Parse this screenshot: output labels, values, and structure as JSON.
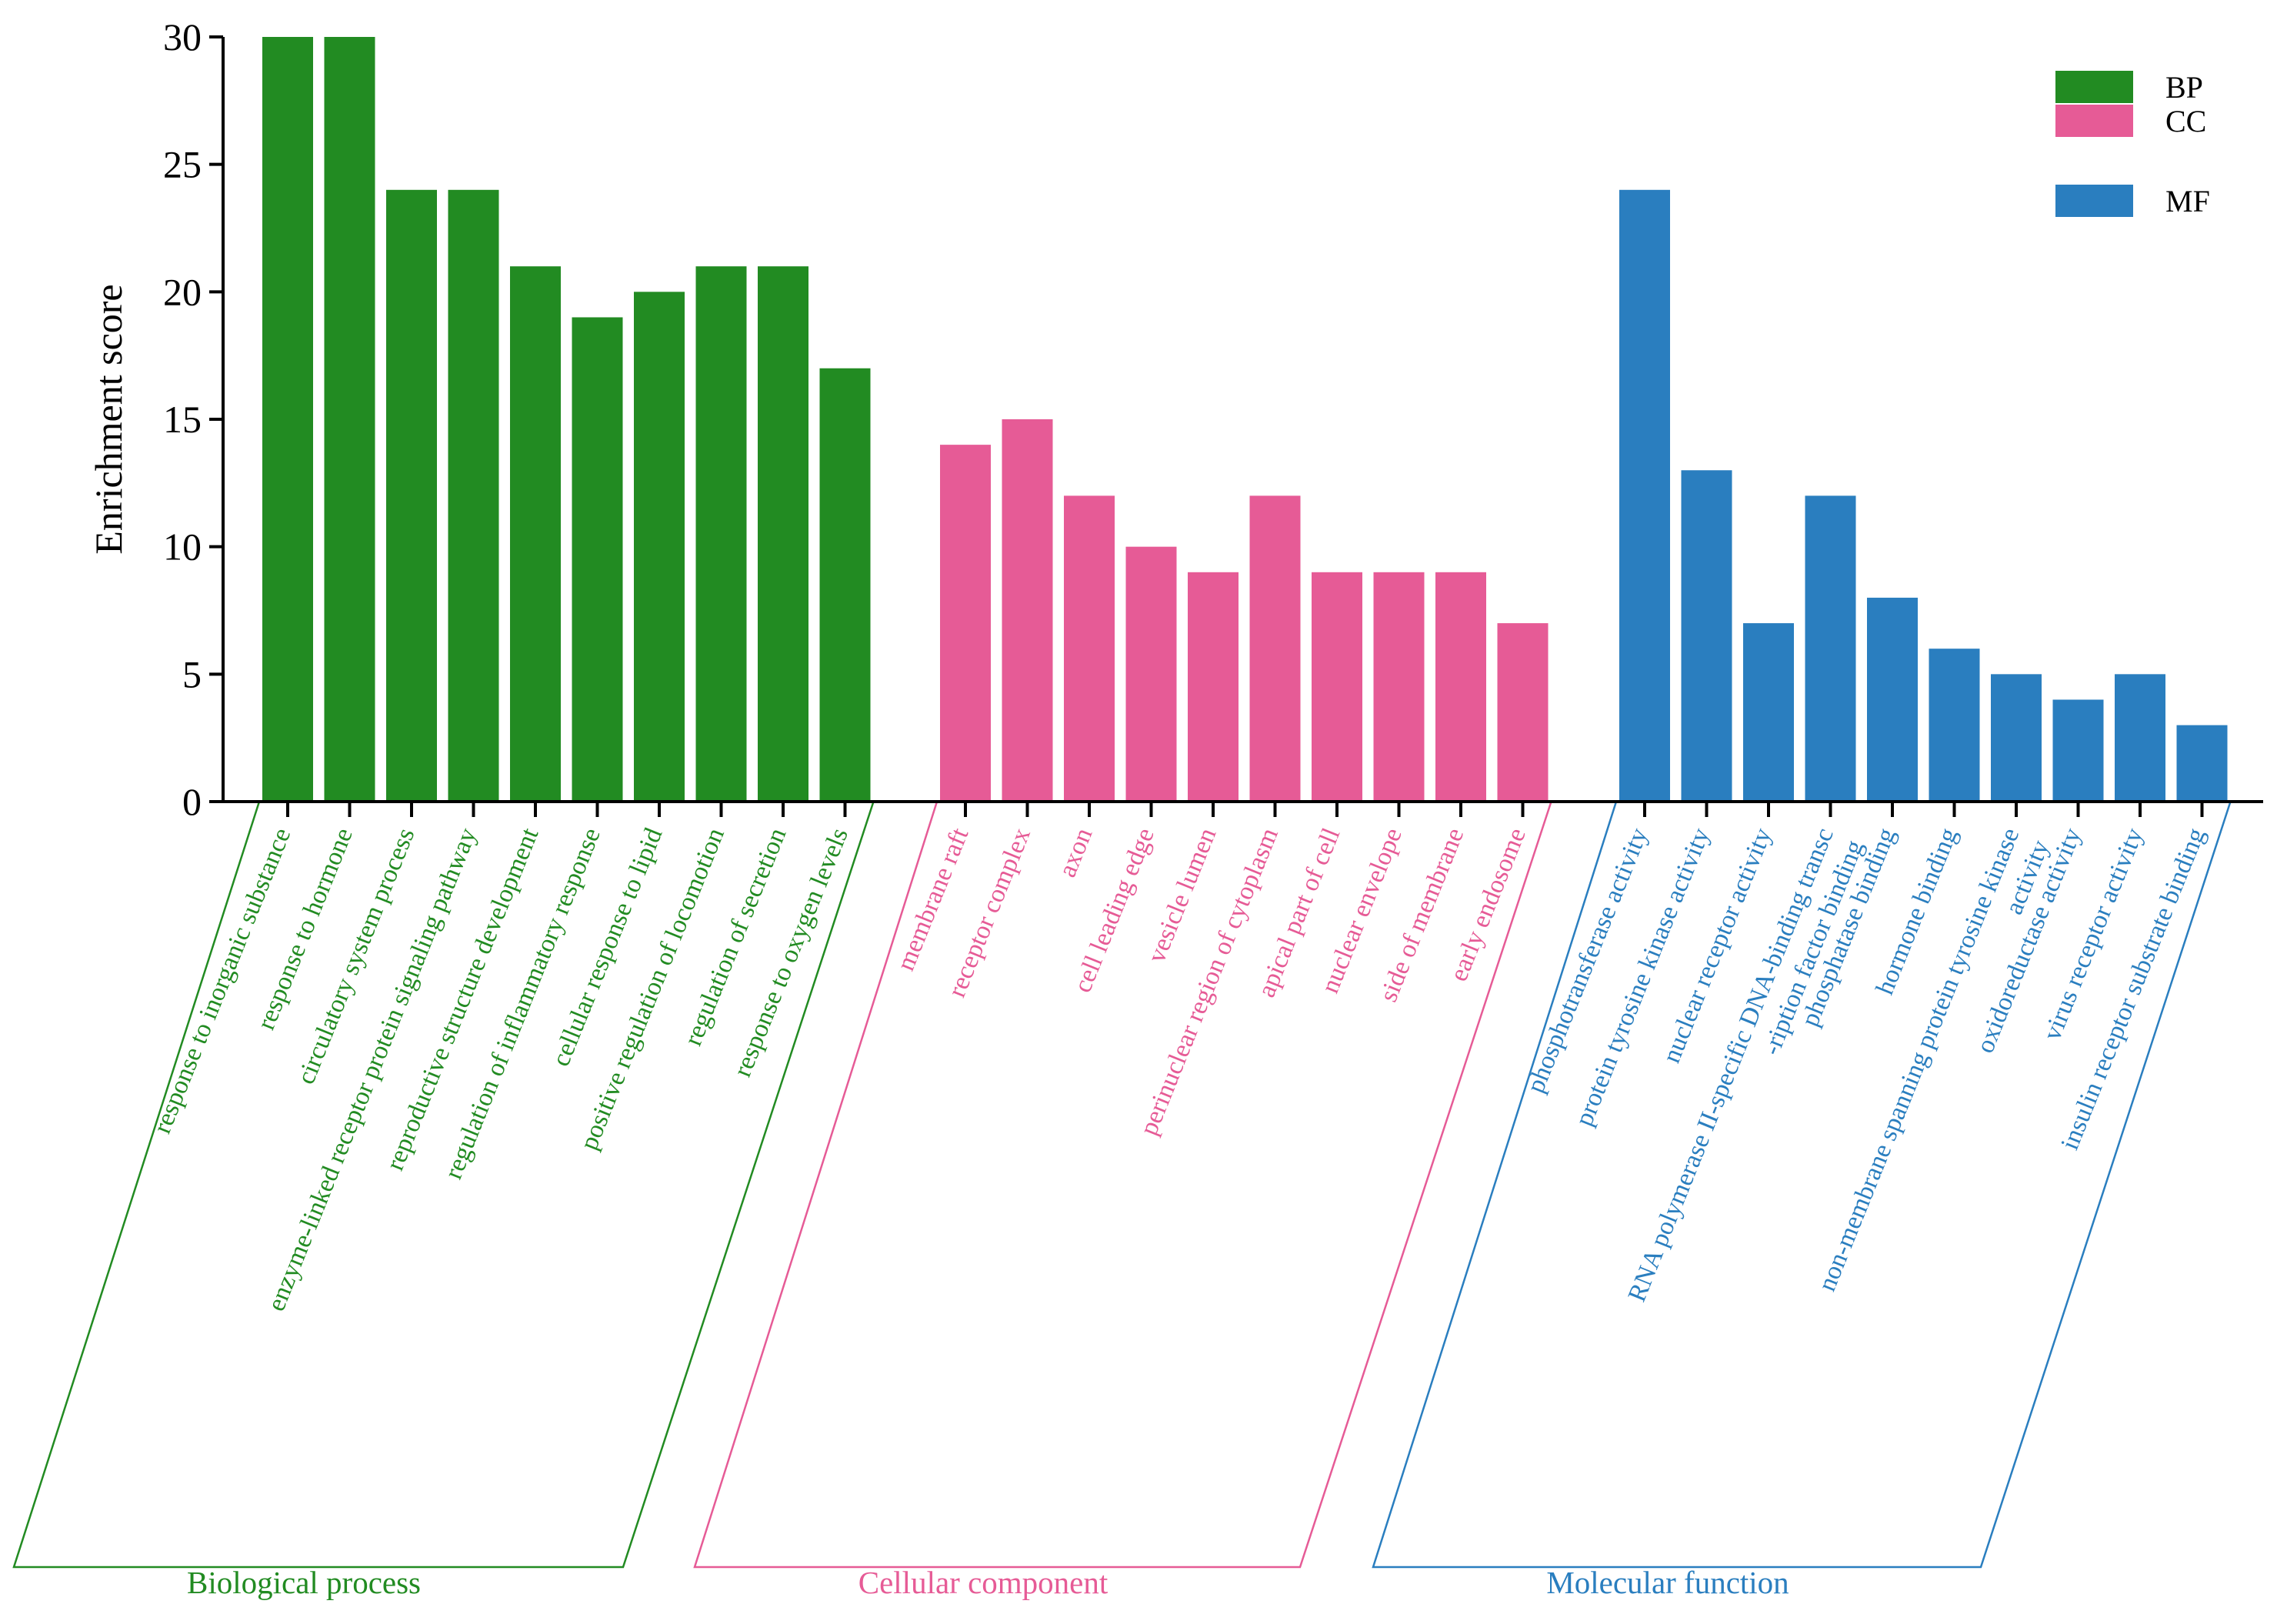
{
  "chart_data": {
    "type": "bar",
    "title": "",
    "xlabel": "",
    "ylabel": "Enrichment score",
    "ylim": [
      0,
      30
    ],
    "yticks": [
      0,
      5,
      10,
      15,
      20,
      25,
      30
    ],
    "grid": false,
    "legend": {
      "position": "top-right",
      "entries": [
        {
          "name": "BP",
          "color": "#228B22"
        },
        {
          "name": "CC",
          "color": "#E65B96"
        },
        {
          "name": "MF",
          "color": "#2A7EBF"
        }
      ]
    },
    "groups": [
      {
        "key": "BP",
        "name": "Biological process",
        "color": "#228B22",
        "categories": [
          [
            "response to inorganic substance"
          ],
          [
            "response to hormone"
          ],
          [
            "circulatory system process"
          ],
          [
            "enzyme-linked receptor protein signaling pathway"
          ],
          [
            "reproductive structure development"
          ],
          [
            "regulation of inflammatory response"
          ],
          [
            "cellular response to lipid"
          ],
          [
            "positive regulation of locomotion"
          ],
          [
            "regulation of secretion"
          ],
          [
            "response to oxygen levels"
          ]
        ],
        "values": [
          30,
          30,
          24,
          24,
          21,
          19,
          20,
          21,
          21,
          17
        ]
      },
      {
        "key": "CC",
        "name": "Cellular component",
        "color": "#E65B96",
        "categories": [
          [
            "membrane raft"
          ],
          [
            "receptor complex"
          ],
          [
            "axon"
          ],
          [
            "cell leading edge"
          ],
          [
            "vesicle lumen"
          ],
          [
            "perinuclear region of cytoplasm"
          ],
          [
            "apical part of cell"
          ],
          [
            "nuclear envelope"
          ],
          [
            "side of membrane"
          ],
          [
            "early endosome"
          ]
        ],
        "values": [
          14,
          15,
          12,
          10,
          9,
          12,
          9,
          9,
          9,
          7
        ]
      },
      {
        "key": "MF",
        "name": "Molecular function",
        "color": "#2A7EBF",
        "categories": [
          [
            "phosphotransferase activity"
          ],
          [
            "protein tyrosine kinase activity"
          ],
          [
            "nuclear receptor activity"
          ],
          [
            "RNA polymerase II-specific DNA-binding transc",
            "-ription factor binding"
          ],
          [
            "phosphatase binding"
          ],
          [
            "hormone binding"
          ],
          [
            "non-membrane spanning protein tyrosine kinase",
            "activity"
          ],
          [
            "oxidoreductase activity"
          ],
          [
            "virus receptor activity"
          ],
          [
            "insulin receptor substrate binding"
          ]
        ],
        "values": [
          24,
          13,
          7,
          12,
          8,
          6,
          5,
          4,
          5,
          3
        ]
      }
    ]
  }
}
